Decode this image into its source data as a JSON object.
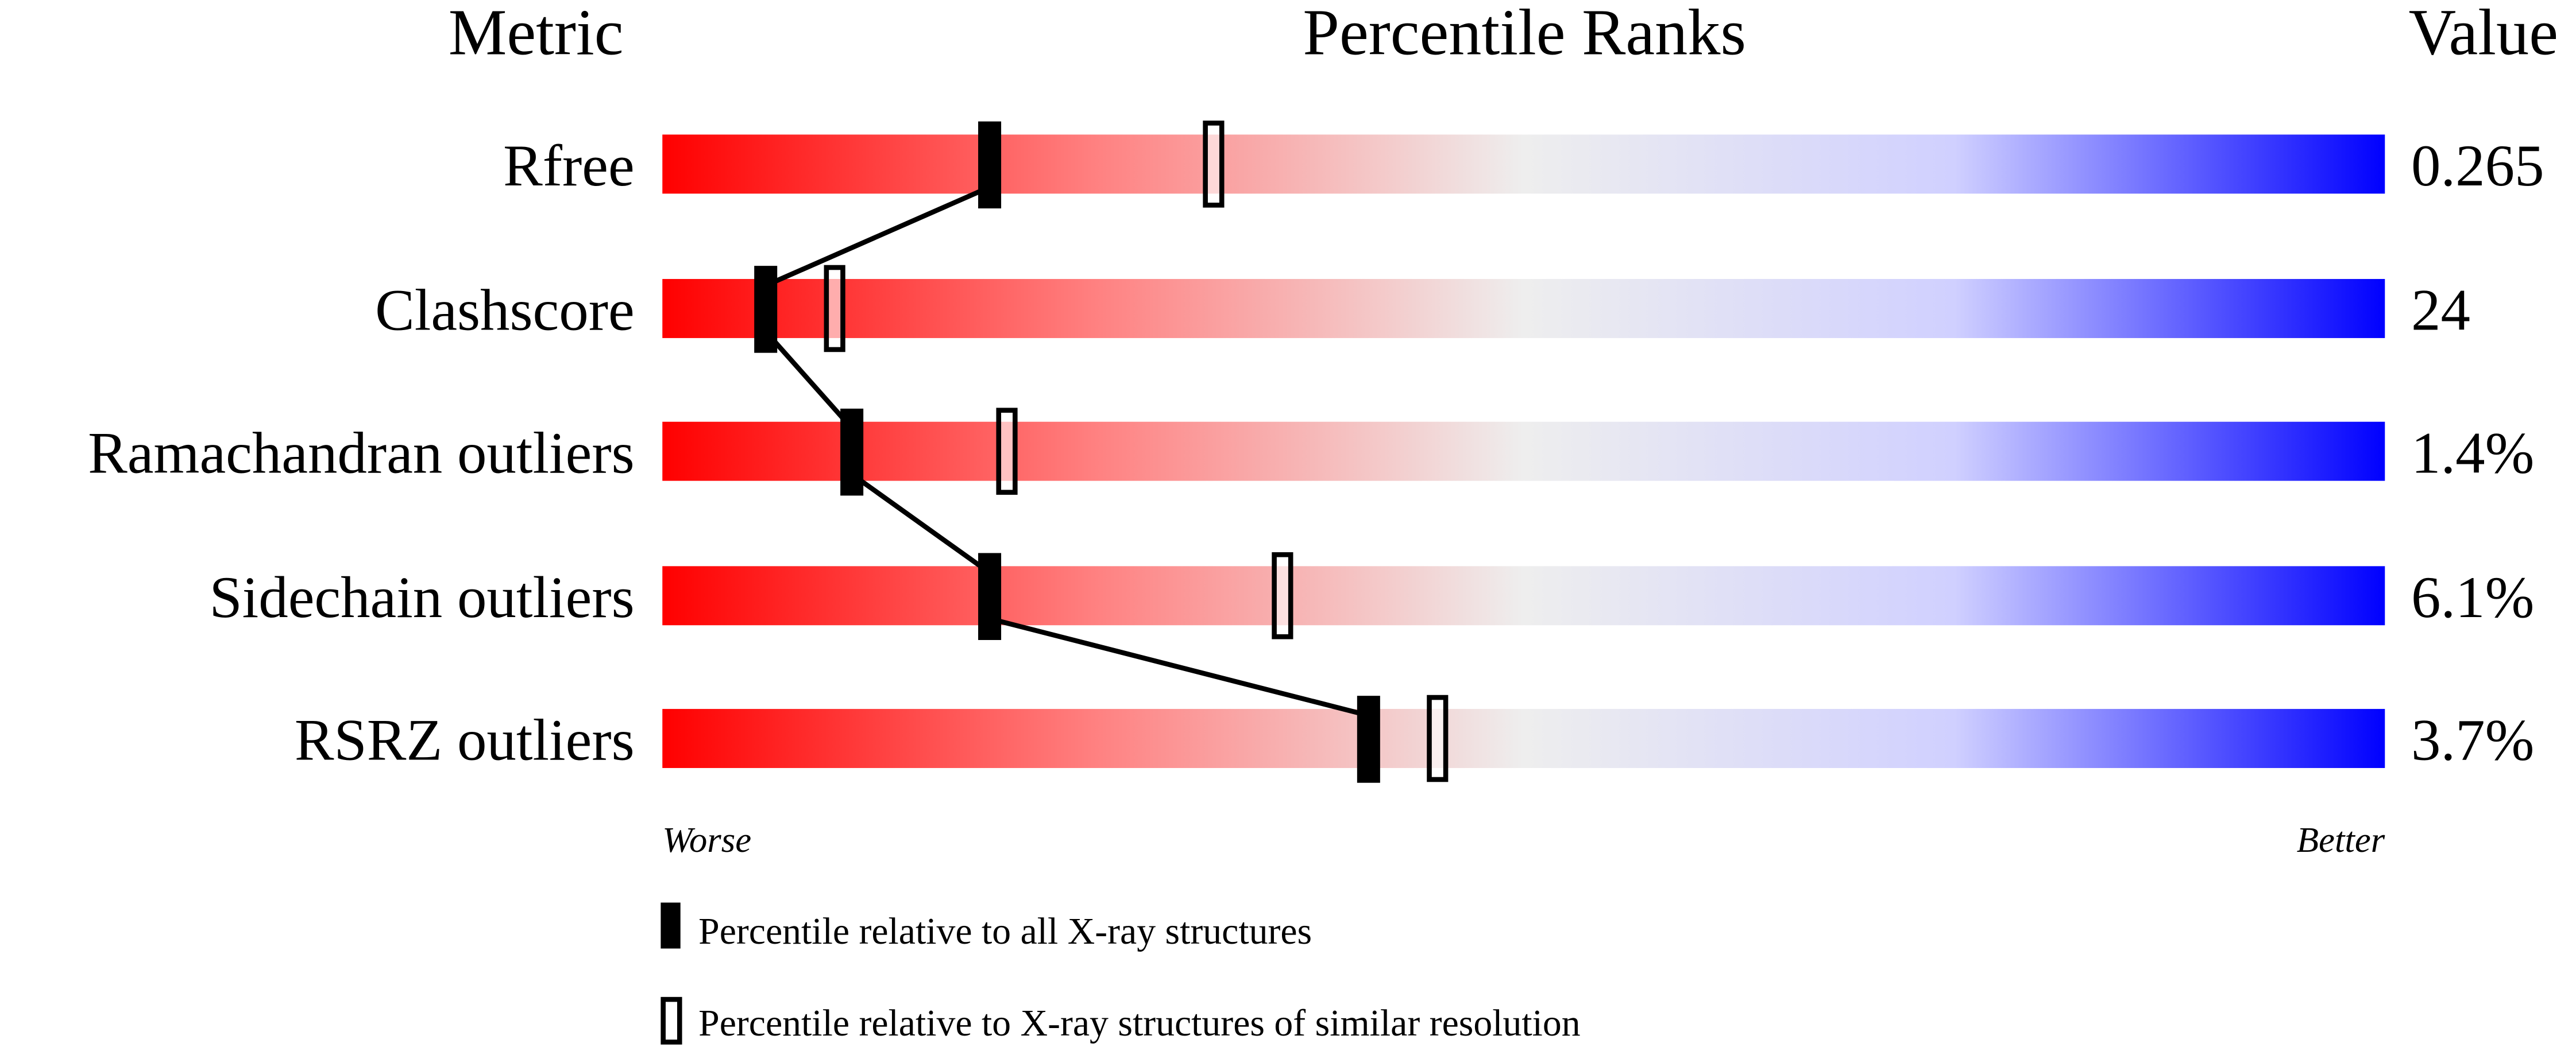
{
  "chart_data": {
    "type": "percentile-bar",
    "headers": {
      "metric": "Metric",
      "ranks": "Percentile Ranks",
      "value": "Value"
    },
    "xlim": [
      0,
      100
    ],
    "axis_labels": {
      "left": "Worse",
      "right": "Better"
    },
    "gradient_colors": [
      "#ff0000",
      "#ff8080",
      "#eeeeee",
      "#d0d0ff",
      "#0000ff"
    ],
    "rows": [
      {
        "metric": "Rfree",
        "value": "0.265",
        "all_percentile": 19,
        "similar_percentile": 32
      },
      {
        "metric": "Clashscore",
        "value": "24",
        "all_percentile": 6,
        "similar_percentile": 10
      },
      {
        "metric": "Ramachandran outliers",
        "value": "1.4%",
        "all_percentile": 11,
        "similar_percentile": 20
      },
      {
        "metric": "Sidechain outliers",
        "value": "6.1%",
        "all_percentile": 19,
        "similar_percentile": 36
      },
      {
        "metric": "RSRZ outliers",
        "value": "3.7%",
        "all_percentile": 41,
        "similar_percentile": 45
      }
    ],
    "legend": [
      {
        "marker": "filled",
        "label": "Percentile relative to all X-ray structures"
      },
      {
        "marker": "open",
        "label": "Percentile relative to X-ray structures of similar resolution"
      }
    ]
  }
}
